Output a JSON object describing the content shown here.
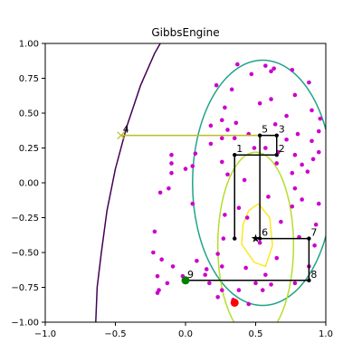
{
  "chart_data": {
    "type": "scatter",
    "title": "GibbsEngine",
    "xlim": [
      -1.0,
      1.0
    ],
    "ylim": [
      -1.0,
      1.0
    ],
    "x_ticks": [
      -1.0,
      -0.5,
      0.0,
      0.5,
      1.0
    ],
    "x_tick_labels": [
      "−1.0",
      "−0.5",
      "0.0",
      "0.5",
      "1.0"
    ],
    "y_ticks": [
      -1.0,
      -0.75,
      -0.5,
      -0.25,
      0.0,
      0.25,
      0.5,
      0.75,
      1.0
    ],
    "y_tick_labels": [
      "−1.00",
      "−0.75",
      "−0.50",
      "−0.25",
      "0.00",
      "0.25",
      "0.50",
      "0.75",
      "1.00"
    ],
    "grid": false,
    "contours": [
      {
        "color": "#440154",
        "points": [
          [
            -0.64,
            -1.0
          ],
          [
            -0.63,
            -0.75
          ],
          [
            -0.6,
            -0.5
          ],
          [
            -0.56,
            -0.2
          ],
          [
            -0.5,
            0.1
          ],
          [
            -0.42,
            0.4
          ],
          [
            -0.32,
            0.7
          ],
          [
            -0.22,
            0.93
          ],
          [
            -0.18,
            1.0
          ]
        ]
      },
      {
        "color": "#21a38b",
        "ellipse": {
          "cx": 0.55,
          "cy": 0.0,
          "rx": 0.5,
          "ry": 0.88
        }
      },
      {
        "color": "#b5de2b",
        "ellipse": {
          "cx": 0.5,
          "cy": -0.45,
          "rx": 0.27,
          "ry": 0.67
        }
      },
      {
        "color": "#fde725",
        "points": [
          [
            0.52,
            -0.15
          ],
          [
            0.6,
            -0.25
          ],
          [
            0.62,
            -0.45
          ],
          [
            0.57,
            -0.6
          ],
          [
            0.49,
            -0.57
          ],
          [
            0.4,
            -0.44
          ],
          [
            0.41,
            -0.3
          ],
          [
            0.45,
            -0.2
          ],
          [
            0.52,
            -0.15
          ]
        ]
      }
    ],
    "samples": {
      "color": "#cc00cc",
      "points": [
        [
          0.37,
          0.85
        ],
        [
          0.57,
          0.84
        ],
        [
          0.63,
          0.82
        ],
        [
          0.76,
          0.81
        ],
        [
          0.61,
          0.8
        ],
        [
          0.47,
          0.78
        ],
        [
          0.88,
          0.72
        ],
        [
          0.22,
          0.7
        ],
        [
          0.33,
          0.67
        ],
        [
          0.78,
          0.63
        ],
        [
          0.61,
          0.6
        ],
        [
          0.53,
          0.57
        ],
        [
          0.9,
          0.52
        ],
        [
          0.72,
          0.48
        ],
        [
          0.28,
          0.54
        ],
        [
          0.26,
          0.45
        ],
        [
          0.36,
          0.43
        ],
        [
          0.96,
          0.46
        ],
        [
          0.18,
          0.41
        ],
        [
          0.26,
          0.32
        ],
        [
          0.3,
          0.38
        ],
        [
          0.35,
          0.32
        ],
        [
          0.45,
          0.35
        ],
        [
          0.64,
          0.42
        ],
        [
          0.8,
          0.35
        ],
        [
          0.95,
          0.37
        ],
        [
          0.72,
          0.31
        ],
        [
          0.9,
          0.3
        ],
        [
          0.95,
          0.22
        ],
        [
          0.91,
          0.17
        ],
        [
          0.57,
          0.25
        ],
        [
          0.49,
          0.25
        ],
        [
          0.66,
          0.22
        ],
        [
          0.78,
          0.2
        ],
        [
          0.83,
          0.13
        ],
        [
          -0.1,
          0.2
        ],
        [
          -0.1,
          0.14
        ],
        [
          0.07,
          0.21
        ],
        [
          0.18,
          0.28
        ],
        [
          -0.1,
          0.07
        ],
        [
          0.0,
          0.1
        ],
        [
          0.05,
          0.12
        ],
        [
          0.26,
          0.15
        ],
        [
          0.65,
          0.14
        ],
        [
          0.76,
          0.07
        ],
        [
          0.87,
          0.08
        ],
        [
          -0.12,
          -0.04
        ],
        [
          0.3,
          0.06
        ],
        [
          0.42,
          0.02
        ],
        [
          0.78,
          -0.04
        ],
        [
          -0.18,
          -0.07
        ],
        [
          0.59,
          -0.1
        ],
        [
          0.83,
          -0.12
        ],
        [
          0.76,
          -0.17
        ],
        [
          0.05,
          -0.15
        ],
        [
          0.38,
          -0.18
        ],
        [
          0.95,
          -0.15
        ],
        [
          0.28,
          -0.23
        ],
        [
          0.44,
          -0.25
        ],
        [
          0.68,
          -0.28
        ],
        [
          0.93,
          -0.3
        ],
        [
          -0.22,
          -0.35
        ],
        [
          -0.23,
          -0.5
        ],
        [
          0.27,
          -0.4
        ],
        [
          0.81,
          -0.39
        ],
        [
          -0.17,
          -0.55
        ],
        [
          0.53,
          -0.43
        ],
        [
          0.92,
          -0.45
        ],
        [
          0.65,
          -0.54
        ],
        [
          -0.09,
          -0.6
        ],
        [
          0.08,
          -0.56
        ],
        [
          0.23,
          -0.51
        ],
        [
          -0.2,
          -0.67
        ],
        [
          -0.02,
          -0.67
        ],
        [
          0.14,
          -0.66
        ],
        [
          0.43,
          -0.61
        ],
        [
          0.88,
          -0.6
        ],
        [
          0.57,
          -0.66
        ],
        [
          -0.13,
          -0.72
        ],
        [
          0.17,
          -0.72
        ],
        [
          0.5,
          -0.72
        ],
        [
          0.61,
          -0.73
        ],
        [
          0.78,
          -0.72
        ],
        [
          -0.19,
          -0.77
        ],
        [
          -0.2,
          -0.79
        ],
        [
          0.26,
          -0.77
        ],
        [
          0.38,
          -0.77
        ],
        [
          0.55,
          -0.77
        ],
        [
          0.23,
          -0.82
        ],
        [
          0.34,
          -0.84
        ],
        [
          0.45,
          -0.87
        ],
        [
          0.15,
          -0.62
        ],
        [
          0.26,
          -0.6
        ]
      ]
    },
    "gibbs_path": {
      "color": "#000000",
      "points": [
        [
          0.35,
          -0.4
        ],
        [
          0.35,
          0.2
        ],
        [
          0.65,
          0.2
        ],
        [
          0.65,
          0.34
        ],
        [
          0.53,
          0.34
        ],
        [
          0.53,
          -0.4
        ],
        [
          0.88,
          -0.4
        ],
        [
          0.88,
          -0.7
        ],
        [
          0.0,
          -0.7
        ]
      ],
      "labels": [
        {
          "text": "1",
          "x": 0.35,
          "y": 0.2
        },
        {
          "text": "2",
          "x": 0.65,
          "y": 0.2
        },
        {
          "text": "3",
          "x": 0.65,
          "y": 0.34
        },
        {
          "text": "5",
          "x": 0.53,
          "y": 0.34
        },
        {
          "text": "6",
          "x": 0.53,
          "y": -0.4
        },
        {
          "text": "7",
          "x": 0.88,
          "y": -0.4
        },
        {
          "text": "8",
          "x": 0.88,
          "y": -0.7
        },
        {
          "text": "9",
          "x": 0.0,
          "y": -0.7
        }
      ]
    },
    "rejected_move": {
      "color": "#bcbd22",
      "from": [
        0.53,
        0.34
      ],
      "to": [
        -0.46,
        0.34
      ],
      "label": "4"
    },
    "current_point": {
      "x": 0.5,
      "y": -0.4,
      "marker": "star"
    },
    "start_point": {
      "x": 0.35,
      "y": -0.86,
      "color": "#ff0000"
    },
    "end_point": {
      "x": 0.0,
      "y": -0.7,
      "color": "#008000"
    }
  }
}
